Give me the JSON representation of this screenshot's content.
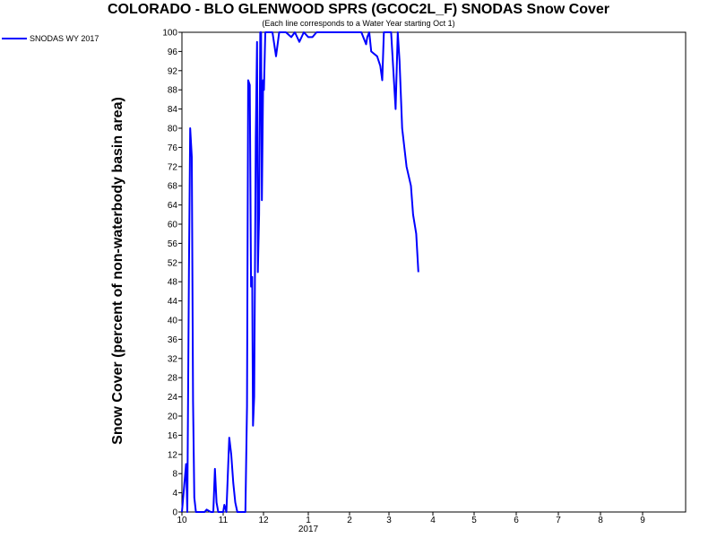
{
  "chart_data": {
    "type": "line",
    "title": "COLORADO - BLO GLENWOOD SPRS (GCOC2L_F) SNODAS Snow Cover",
    "subtitle": "(Each line corresponds to a Water Year starting Oct 1)",
    "ylabel": "Snow Cover (percent of non-waterbody basin area)",
    "xlabel": "",
    "year_label": "2017",
    "ylim": [
      0,
      100
    ],
    "y_ticks": [
      0,
      4,
      8,
      12,
      16,
      20,
      24,
      28,
      32,
      36,
      40,
      44,
      48,
      52,
      56,
      60,
      64,
      68,
      72,
      76,
      80,
      84,
      88,
      92,
      96,
      100
    ],
    "x_ticks": [
      {
        "label": "10",
        "month": 0
      },
      {
        "label": "11",
        "month": 1
      },
      {
        "label": "12",
        "month": 2
      },
      {
        "label": "1",
        "month": 3
      },
      {
        "label": "2",
        "month": 4
      },
      {
        "label": "3",
        "month": 5
      },
      {
        "label": "4",
        "month": 6
      },
      {
        "label": "5",
        "month": 7
      },
      {
        "label": "6",
        "month": 8
      },
      {
        "label": "7",
        "month": 9
      },
      {
        "label": "8",
        "month": 10
      },
      {
        "label": "9",
        "month": 11
      }
    ],
    "xlim_months": [
      0,
      12
    ],
    "grid": false,
    "legend_position": "top-left",
    "series": [
      {
        "name": "SNODAS WY 2017",
        "color": "#0000ff",
        "points": [
          [
            0,
            0
          ],
          [
            0.1,
            10
          ],
          [
            0.13,
            0
          ],
          [
            0.17,
            50
          ],
          [
            0.2,
            80
          ],
          [
            0.24,
            74
          ],
          [
            0.27,
            23
          ],
          [
            0.3,
            3
          ],
          [
            0.34,
            0
          ],
          [
            0.55,
            0
          ],
          [
            0.6,
            0.5
          ],
          [
            0.7,
            0
          ],
          [
            0.76,
            0
          ],
          [
            0.8,
            9
          ],
          [
            0.84,
            2
          ],
          [
            0.88,
            0
          ],
          [
            1.0,
            0
          ],
          [
            1.03,
            1.5
          ],
          [
            1.08,
            0
          ],
          [
            1.15,
            15.5
          ],
          [
            1.2,
            12
          ],
          [
            1.25,
            6
          ],
          [
            1.3,
            2
          ],
          [
            1.35,
            0
          ],
          [
            1.55,
            0
          ],
          [
            1.59,
            22
          ],
          [
            1.62,
            90
          ],
          [
            1.66,
            89
          ],
          [
            1.69,
            47
          ],
          [
            1.72,
            49
          ],
          [
            1.74,
            18
          ],
          [
            1.77,
            24
          ],
          [
            1.81,
            78
          ],
          [
            1.84,
            98
          ],
          [
            1.86,
            50
          ],
          [
            1.89,
            62
          ],
          [
            1.92,
            100
          ],
          [
            1.94,
            100
          ],
          [
            1.96,
            65
          ],
          [
            1.99,
            90
          ],
          [
            2.01,
            88
          ],
          [
            2.04,
            100
          ],
          [
            2.1,
            100
          ],
          [
            2.2,
            100
          ],
          [
            2.28,
            95
          ],
          [
            2.35,
            100
          ],
          [
            2.5,
            100
          ],
          [
            2.62,
            99
          ],
          [
            2.7,
            100
          ],
          [
            2.8,
            98
          ],
          [
            2.9,
            100
          ],
          [
            3.0,
            99
          ],
          [
            3.1,
            99
          ],
          [
            3.2,
            100
          ],
          [
            4.0,
            100
          ],
          [
            4.3,
            100
          ],
          [
            4.42,
            97.5
          ],
          [
            4.45,
            99
          ],
          [
            4.5,
            100
          ],
          [
            4.55,
            96
          ],
          [
            4.7,
            95
          ],
          [
            4.78,
            93
          ],
          [
            4.83,
            90
          ],
          [
            4.87,
            100
          ],
          [
            4.92,
            100
          ],
          [
            5.0,
            100
          ],
          [
            5.05,
            100
          ],
          [
            5.1,
            92
          ],
          [
            5.15,
            84
          ],
          [
            5.2,
            100
          ],
          [
            5.24,
            94
          ],
          [
            5.3,
            80
          ],
          [
            5.4,
            72
          ],
          [
            5.5,
            68
          ],
          [
            5.55,
            62
          ],
          [
            5.62,
            58
          ],
          [
            5.67,
            50
          ]
        ]
      }
    ]
  }
}
